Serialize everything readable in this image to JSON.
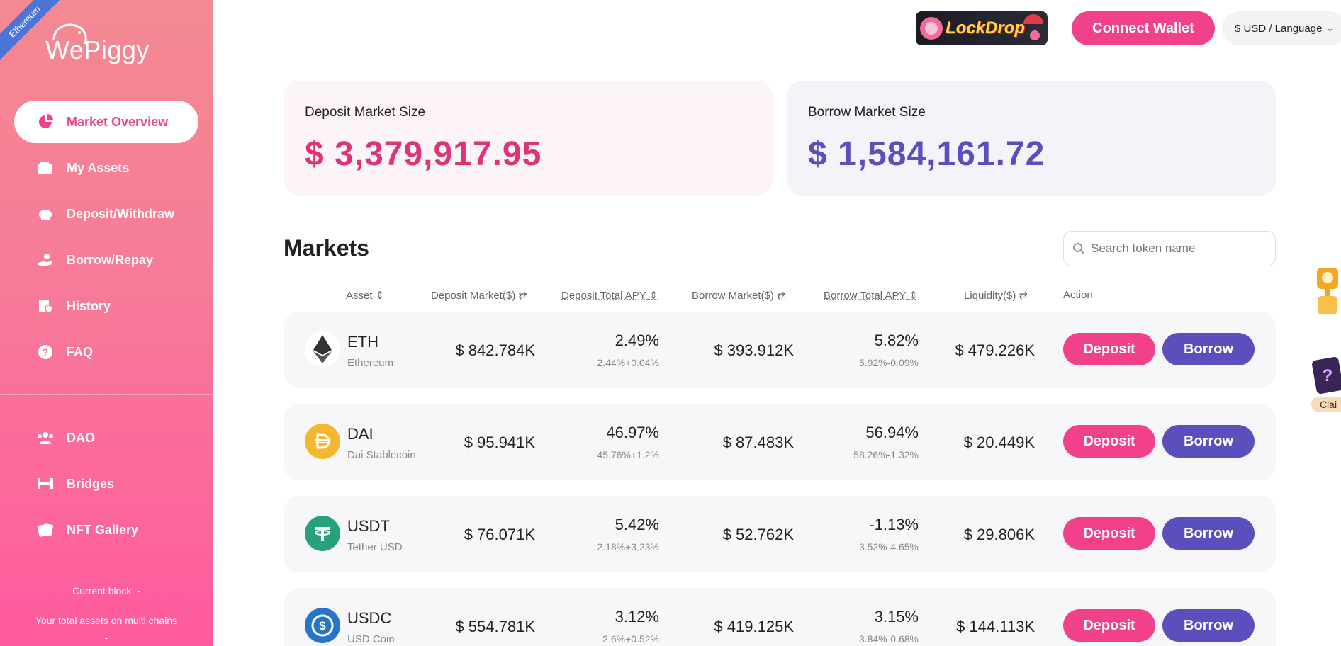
{
  "sidebar": {
    "chain": "Ethereum",
    "brand": "WePiggy",
    "nav": [
      {
        "label": "Market Overview",
        "icon": "pie-chart-icon",
        "active": true
      },
      {
        "label": "My Assets",
        "icon": "wallet-icon"
      },
      {
        "label": "Deposit/Withdraw",
        "icon": "piggy-bank-icon"
      },
      {
        "label": "Borrow/Repay",
        "icon": "hand-coin-icon"
      },
      {
        "label": "History",
        "icon": "history-icon"
      },
      {
        "label": "FAQ",
        "icon": "question-icon"
      }
    ],
    "nav2": [
      {
        "label": "DAO",
        "icon": "group-icon"
      },
      {
        "label": "Bridges",
        "icon": "bridge-icon"
      },
      {
        "label": "NFT Gallery",
        "icon": "nft-card-icon"
      }
    ],
    "current_block": "Current block: -",
    "total_assets": "Your total assets on multi chains",
    "total_assets_value": "-"
  },
  "header": {
    "lockdrop": "LockDrop",
    "connect": "Connect Wallet",
    "language": "$ USD / Language"
  },
  "stats": {
    "deposit_label": "Deposit Market Size",
    "deposit_value": "$ 3,379,917.95",
    "borrow_label": "Borrow Market Size",
    "borrow_value": "$ 1,584,161.72"
  },
  "markets": {
    "title": "Markets",
    "search_placeholder": "Search token name",
    "columns": {
      "asset": "Asset",
      "deposit_market": "Deposit Market($)",
      "deposit_apy": "Deposit Total APY",
      "borrow_market": "Borrow Market($)",
      "borrow_apy": "Borrow Total APY",
      "liquidity": "Liquidity($)",
      "action": "Action"
    },
    "deposit_label": "Deposit",
    "borrow_label": "Borrow",
    "rows": [
      {
        "symbol": "ETH",
        "name": "Ethereum",
        "deposit_market": "$ 842.784K",
        "deposit_apy": "2.49%",
        "deposit_apy_sub": "2.44%+0.04%",
        "borrow_market": "$ 393.912K",
        "borrow_apy": "5.82%",
        "borrow_apy_sub": "5.92%-0.09%",
        "liquidity": "$ 479.226K"
      },
      {
        "symbol": "DAI",
        "name": "Dai Stablecoin",
        "deposit_market": "$ 95.941K",
        "deposit_apy": "46.97%",
        "deposit_apy_sub": "45.76%+1.2%",
        "borrow_market": "$ 87.483K",
        "borrow_apy": "56.94%",
        "borrow_apy_sub": "58.26%-1.32%",
        "liquidity": "$ 20.449K"
      },
      {
        "symbol": "USDT",
        "name": "Tether USD",
        "deposit_market": "$ 76.071K",
        "deposit_apy": "5.42%",
        "deposit_apy_sub": "2.18%+3.23%",
        "borrow_market": "$ 52.762K",
        "borrow_apy": "-1.13%",
        "borrow_apy_sub": "3.52%-4.65%",
        "liquidity": "$ 29.806K"
      },
      {
        "symbol": "USDC",
        "name": "USD Coin",
        "deposit_market": "$ 554.781K",
        "deposit_apy": "3.12%",
        "deposit_apy_sub": "2.6%+0.52%",
        "borrow_market": "$ 419.125K",
        "borrow_apy": "3.15%",
        "borrow_apy_sub": "3.84%-0.68%",
        "liquidity": "$ 144.113K"
      }
    ]
  },
  "floating": {
    "claim": "Clai"
  },
  "colors": {
    "pink": "#f0418a",
    "purple": "#5a4fbd"
  }
}
